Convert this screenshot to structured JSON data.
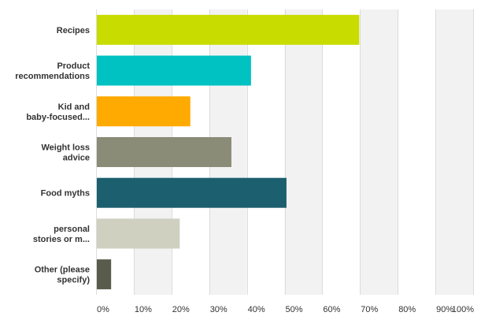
{
  "chart_data": {
    "type": "bar",
    "orientation": "horizontal",
    "categories": [
      [
        "Recipes"
      ],
      [
        "Product",
        "recommendations"
      ],
      [
        "Kid and",
        "baby-focused..."
      ],
      [
        "Weight loss",
        "advice"
      ],
      [
        "Food myths"
      ],
      [
        "personal",
        "stories or m..."
      ],
      [
        "Other (please",
        "specify)"
      ]
    ],
    "values": [
      69.8,
      41.1,
      25.0,
      35.9,
      50.5,
      22.2,
      4.0
    ],
    "colors": [
      "#c8dc00",
      "#00c2c2",
      "#ffaa00",
      "#8a8c78",
      "#1c5f6e",
      "#cfd0c0",
      "#595c4c"
    ],
    "xlim": [
      0,
      100
    ],
    "xticks": [
      0,
      10,
      20,
      30,
      40,
      50,
      60,
      70,
      80,
      90,
      100
    ],
    "tick_suffix": "%",
    "grid": true,
    "alternating_bands": true,
    "band_color": "#f2f2f2"
  }
}
